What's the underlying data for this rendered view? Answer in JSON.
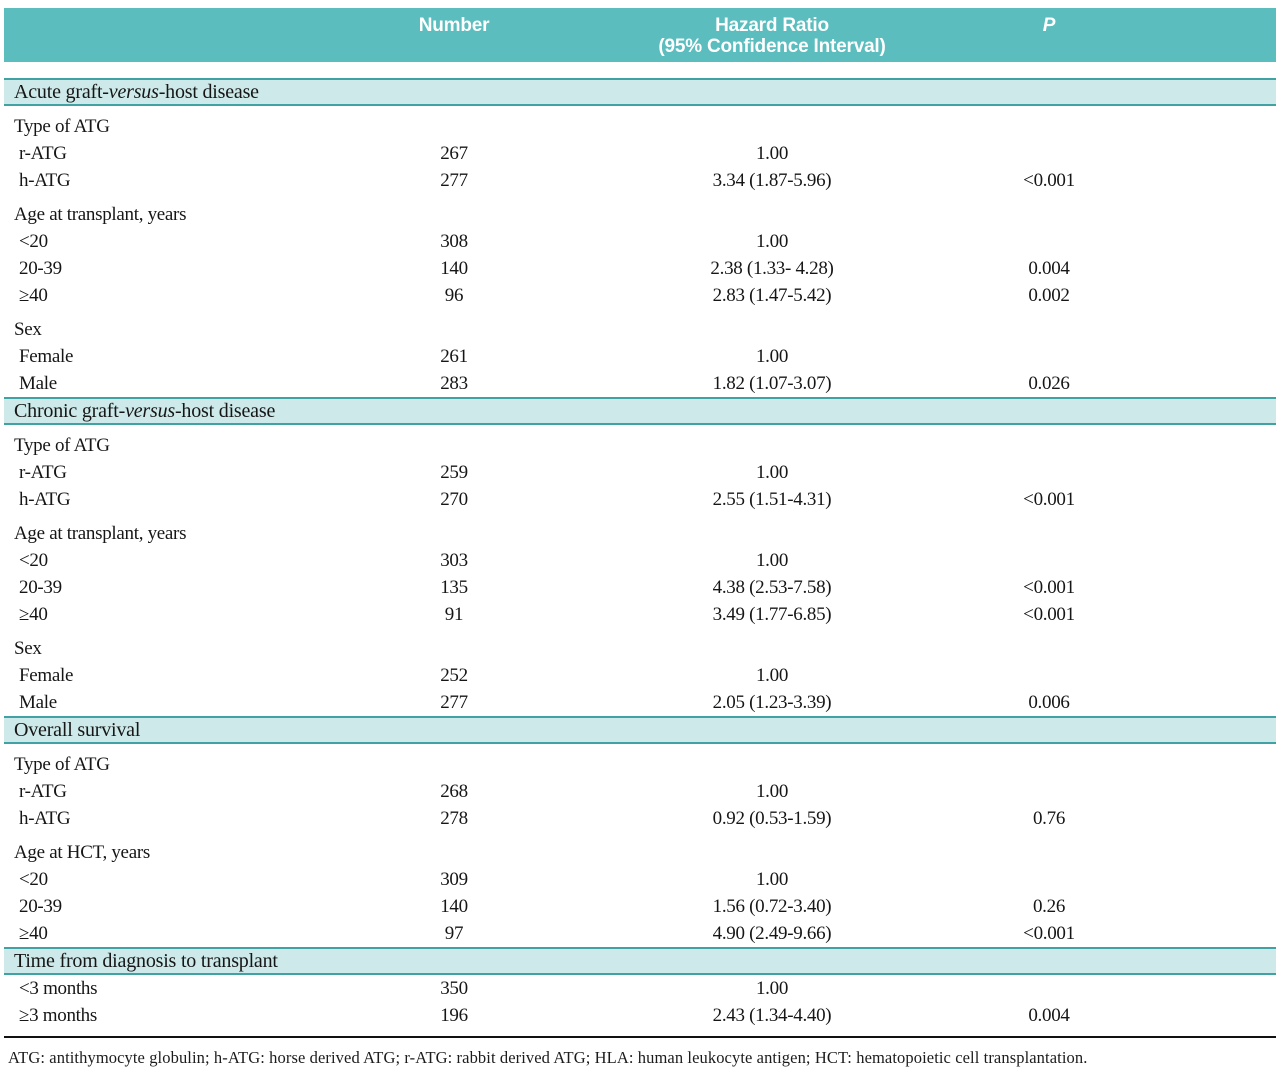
{
  "colors": {
    "header_bg": "#5bbdbd",
    "band_bg": "#cde9e9",
    "band_border": "#41a2a3",
    "text": "#161616"
  },
  "header": {
    "number_label": "Number",
    "hazard_line1": "Hazard Ratio",
    "hazard_line2": "(95% Confidence Interval)",
    "p_label": "P"
  },
  "sections": [
    {
      "title": [
        {
          "t": "Acute graft-",
          "i": false
        },
        {
          "t": "versus",
          "i": true
        },
        {
          "t": "-host disease",
          "i": false
        }
      ],
      "groups": [
        {
          "label": "Type of ATG",
          "rows": [
            {
              "label": "r-ATG",
              "number": "267",
              "hr": "1.00",
              "p": ""
            },
            {
              "label": "h-ATG",
              "number": "277",
              "hr": "3.34 (1.87-5.96)",
              "p": "<0.001"
            }
          ]
        },
        {
          "label": "Age at transplant, years",
          "rows": [
            {
              "label": "<20",
              "number": "308",
              "hr": "1.00",
              "p": ""
            },
            {
              "label": "20-39",
              "number": "140",
              "hr": "2.38 (1.33- 4.28)",
              "p": "0.004"
            },
            {
              "label": "≥40",
              "number": "96",
              "hr": "2.83 (1.47-5.42)",
              "p": "0.002"
            }
          ]
        },
        {
          "label": "Sex",
          "rows": [
            {
              "label": "Female",
              "number": "261",
              "hr": "1.00",
              "p": ""
            },
            {
              "label": "Male",
              "number": "283",
              "hr": "1.82 (1.07-3.07)",
              "p": "0.026"
            }
          ]
        }
      ]
    },
    {
      "title": [
        {
          "t": "Chronic graft-",
          "i": false
        },
        {
          "t": "versus",
          "i": true
        },
        {
          "t": "-host disease",
          "i": false
        }
      ],
      "groups": [
        {
          "label": "Type of ATG",
          "rows": [
            {
              "label": "r-ATG",
              "number": "259",
              "hr": "1.00",
              "p": ""
            },
            {
              "label": "h-ATG",
              "number": "270",
              "hr": "2.55 (1.51-4.31)",
              "p": "<0.001"
            }
          ]
        },
        {
          "label": "Age at transplant, years",
          "rows": [
            {
              "label": "<20",
              "number": "303",
              "hr": "1.00",
              "p": ""
            },
            {
              "label": "20-39",
              "number": "135",
              "hr": "4.38 (2.53-7.58)",
              "p": "<0.001"
            },
            {
              "label": "≥40",
              "number": "91",
              "hr": "3.49 (1.77-6.85)",
              "p": "<0.001"
            }
          ]
        },
        {
          "label": "Sex",
          "rows": [
            {
              "label": "Female",
              "number": "252",
              "hr": "1.00",
              "p": ""
            },
            {
              "label": "Male",
              "number": "277",
              "hr": "2.05 (1.23-3.39)",
              "p": "0.006"
            }
          ]
        }
      ]
    },
    {
      "title": [
        {
          "t": "Overall survival",
          "i": false
        }
      ],
      "groups": [
        {
          "label": "Type of ATG",
          "rows": [
            {
              "label": "r-ATG",
              "number": "268",
              "hr": "1.00",
              "p": ""
            },
            {
              "label": "h-ATG",
              "number": "278",
              "hr": "0.92 (0.53-1.59)",
              "p": "0.76"
            }
          ]
        },
        {
          "label": "Age at HCT, years",
          "rows": [
            {
              "label": "<20",
              "number": "309",
              "hr": "1.00",
              "p": ""
            },
            {
              "label": "20-39",
              "number": "140",
              "hr": "1.56 (0.72-3.40)",
              "p": "0.26"
            },
            {
              "label": "≥40",
              "number": "97",
              "hr": "4.90 (2.49-9.66)",
              "p": "<0.001"
            }
          ]
        }
      ]
    },
    {
      "title": [
        {
          "t": "Time from diagnosis to transplant",
          "i": false
        }
      ],
      "groups": [
        {
          "label": "",
          "rows": [
            {
              "label": "<3 months",
              "number": "350",
              "hr": "1.00",
              "p": ""
            },
            {
              "label": "≥3 months",
              "number": "196",
              "hr": "2.43 (1.34-4.40)",
              "p": "0.004"
            }
          ]
        }
      ]
    }
  ],
  "footnote": "ATG: antithymocyte globulin; h-ATG: horse derived ATG; r-ATG: rabbit derived ATG; HLA: human leukocyte antigen; HCT: hematopoietic cell transplantation."
}
